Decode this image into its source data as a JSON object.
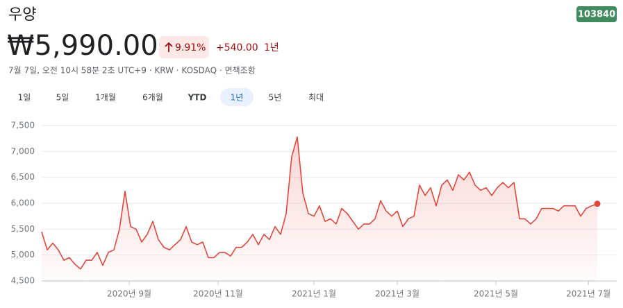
{
  "header": {
    "title": "우양",
    "ticker": "103840",
    "price": "₩5,990.00",
    "change_percent": "9.91%",
    "change": "+540.00",
    "period": "1년",
    "subtitle": "7월 7일, 오전 10시 58분 2초 UTC+9 · KRW · KOSDAQ · 면책조항"
  },
  "tabs": [
    "1일",
    "5일",
    "1개월",
    "6개월",
    "YTD",
    "1년",
    "5년",
    "최대"
  ],
  "selected_tab": "1년",
  "chart_data": {
    "type": "line",
    "color": "#e2463b",
    "values": [
      5450,
      5100,
      5230,
      5100,
      4900,
      4950,
      4820,
      4730,
      4900,
      4900,
      5050,
      4800,
      5050,
      5100,
      5500,
      6230,
      5550,
      5500,
      5250,
      5400,
      5650,
      5300,
      5150,
      5100,
      5200,
      5300,
      5550,
      5250,
      5200,
      5250,
      4950,
      4950,
      5050,
      5050,
      4980,
      5150,
      5150,
      5250,
      5400,
      5200,
      5400,
      5300,
      5550,
      5400,
      5800,
      6900,
      7280,
      6200,
      5800,
      5750,
      5950,
      5650,
      5700,
      5600,
      5900,
      5800,
      5650,
      5500,
      5600,
      5600,
      5700,
      6050,
      5850,
      5750,
      5850,
      5550,
      5700,
      5750,
      6350,
      6150,
      6300,
      5950,
      6350,
      6450,
      6250,
      6550,
      6450,
      6600,
      6350,
      6250,
      6300,
      6150,
      6300,
      6400,
      6300,
      6400,
      5700,
      5700,
      5600,
      5700,
      5900,
      5900,
      5900,
      5850,
      5950,
      5950,
      5950,
      5750,
      5900,
      5950,
      5990
    ],
    "xlim": [
      0,
      100
    ],
    "xticks": [
      {
        "value": 15.75,
        "label": "2020년 9월"
      },
      {
        "value": 31.75,
        "label": "2020년 11월"
      },
      {
        "value": 49,
        "label": "2021년 1월"
      },
      {
        "value": 64,
        "label": "2021년 3월"
      },
      {
        "value": 81.75,
        "label": "2021년 5월"
      },
      {
        "value": 98.4,
        "label": "2021년 7월"
      }
    ],
    "ylim": [
      4500,
      7500
    ],
    "yticks": [
      {
        "value": 4500,
        "label": "4,500"
      },
      {
        "value": 5000,
        "label": "5,000"
      },
      {
        "value": 5500,
        "label": "5,500"
      },
      {
        "value": 6000,
        "label": "6,000"
      },
      {
        "value": 6500,
        "label": "6,500"
      },
      {
        "value": 7000,
        "label": "7,000"
      },
      {
        "value": 7500,
        "label": "7,500"
      }
    ],
    "grid": true
  }
}
